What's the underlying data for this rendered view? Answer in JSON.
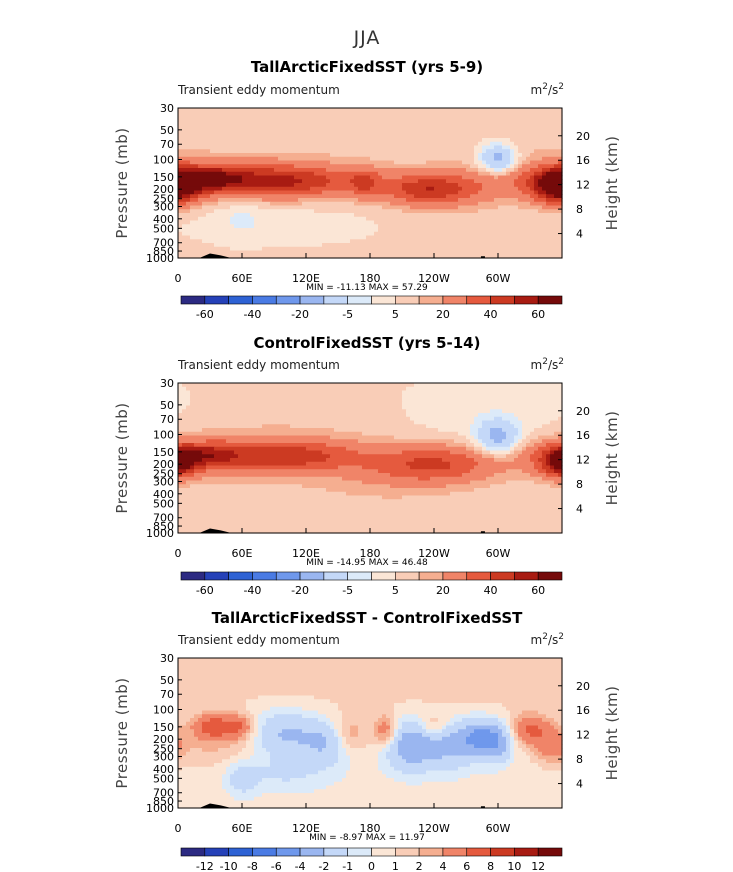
{
  "title": "JJA",
  "chart_data": [
    {
      "type": "contour",
      "panel_title": "TallArcticFixedSST (yrs 5-9)",
      "subtitle_left": "Transient eddy momentum",
      "units": "m²/s²",
      "ylabel_left": "Pressure (mb)",
      "ylabel_right": "Height (km)",
      "pressure_ticks": [
        "30",
        "50",
        "70",
        "100",
        "150",
        "200",
        "250",
        "300",
        "400",
        "500",
        "700",
        "850",
        "1000"
      ],
      "pressure_values": [
        30,
        50,
        70,
        100,
        150,
        200,
        250,
        300,
        400,
        500,
        700,
        850,
        1000
      ],
      "height_ticks": [
        "20",
        "16",
        "12",
        "8",
        "4"
      ],
      "height_values": [
        20,
        16,
        12,
        8,
        4
      ],
      "x_ticks": [
        "0",
        "60E",
        "120E",
        "180",
        "120W",
        "60W"
      ],
      "x_values": [
        0,
        60,
        120,
        180,
        240,
        300
      ],
      "xlim": [
        0,
        360
      ],
      "ylim_mb": [
        1000,
        30
      ],
      "stats": "MIN = -11.13   MAX =  57.29",
      "colorbar_labels": [
        "-60",
        "-40",
        "-20",
        "-5",
        "5",
        "20",
        "40",
        "60"
      ],
      "levels": [
        -70,
        -60,
        -50,
        -40,
        -30,
        -20,
        -10,
        -5,
        0,
        5,
        10,
        20,
        30,
        40,
        50,
        60,
        70
      ],
      "blobs": [
        {
          "lon": 180,
          "p": 400,
          "slon": 300,
          "sp": 3.5,
          "v": 1
        },
        {
          "lon": 330,
          "p": 60,
          "slon": 40,
          "sp": 0.5,
          "v": 3
        },
        {
          "lon": 100,
          "p": 120,
          "slon": 80,
          "sp": 0.5,
          "v": 3
        },
        {
          "lon": 100,
          "p": 420,
          "slon": 70,
          "sp": 0.4,
          "v": -3
        },
        {
          "lon": 60,
          "p": 400,
          "slon": 15,
          "sp": 0.3,
          "v": -5
        },
        {
          "lon": 40,
          "p": 160,
          "slon": 70,
          "sp": 0.28,
          "v": 28
        },
        {
          "lon": 30,
          "p": 155,
          "slon": 20,
          "sp": 0.18,
          "v": 27
        },
        {
          "lon": 110,
          "p": 170,
          "slon": 45,
          "sp": 0.25,
          "v": 22
        },
        {
          "lon": 175,
          "p": 170,
          "slon": 10,
          "sp": 0.22,
          "v": 18
        },
        {
          "lon": 235,
          "p": 200,
          "slon": 30,
          "sp": 0.25,
          "v": 32
        },
        {
          "lon": 260,
          "p": 210,
          "slon": 50,
          "sp": 0.4,
          "v": 6
        },
        {
          "lon": 355,
          "p": 190,
          "slon": 18,
          "sp": 0.28,
          "v": 38
        },
        {
          "lon": 300,
          "p": 100,
          "slon": 12,
          "sp": 0.25,
          "v": -28
        },
        {
          "lon": 0,
          "p": 180,
          "slon": 12,
          "sp": 0.25,
          "v": 25
        }
      ]
    },
    {
      "type": "contour",
      "panel_title": "ControlFixedSST (yrs 5-14)",
      "subtitle_left": "Transient eddy momentum",
      "units": "m²/s²",
      "ylabel_left": "Pressure (mb)",
      "ylabel_right": "Height (km)",
      "pressure_ticks": [
        "30",
        "50",
        "70",
        "100",
        "150",
        "200",
        "250",
        "300",
        "400",
        "500",
        "700",
        "850",
        "1000"
      ],
      "pressure_values": [
        30,
        50,
        70,
        100,
        150,
        200,
        250,
        300,
        400,
        500,
        700,
        850,
        1000
      ],
      "height_ticks": [
        "20",
        "16",
        "12",
        "8",
        "4"
      ],
      "height_values": [
        20,
        16,
        12,
        8,
        4
      ],
      "x_ticks": [
        "0",
        "60E",
        "120E",
        "180",
        "120W",
        "60W"
      ],
      "x_values": [
        0,
        60,
        120,
        180,
        240,
        300
      ],
      "xlim": [
        0,
        360
      ],
      "ylim_mb": [
        1000,
        30
      ],
      "stats": "MIN = -14.95   MAX =  46.48",
      "colorbar_labels": [
        "-60",
        "-40",
        "-20",
        "-5",
        "5",
        "20",
        "40",
        "60"
      ],
      "levels": [
        -70,
        -60,
        -50,
        -40,
        -30,
        -20,
        -10,
        -5,
        0,
        5,
        10,
        20,
        30,
        40,
        50,
        60,
        70
      ],
      "blobs": [
        {
          "lon": 180,
          "p": 400,
          "slon": 300,
          "sp": 3.5,
          "v": 1
        },
        {
          "lon": 290,
          "p": 70,
          "slon": 60,
          "sp": 0.6,
          "v": -4
        },
        {
          "lon": 100,
          "p": 100,
          "slon": 90,
          "sp": 0.5,
          "v": 3
        },
        {
          "lon": 150,
          "p": 500,
          "slon": 120,
          "sp": 0.5,
          "v": 2
        },
        {
          "lon": 40,
          "p": 165,
          "slon": 60,
          "sp": 0.3,
          "v": 24
        },
        {
          "lon": 30,
          "p": 160,
          "slon": 18,
          "sp": 0.18,
          "v": 20
        },
        {
          "lon": 115,
          "p": 165,
          "slon": 40,
          "sp": 0.25,
          "v": 22
        },
        {
          "lon": 240,
          "p": 200,
          "slon": 40,
          "sp": 0.3,
          "v": 28
        },
        {
          "lon": 190,
          "p": 230,
          "slon": 50,
          "sp": 0.4,
          "v": 6
        },
        {
          "lon": 300,
          "p": 110,
          "slon": 14,
          "sp": 0.3,
          "v": -26
        },
        {
          "lon": 358,
          "p": 190,
          "slon": 15,
          "sp": 0.25,
          "v": 30
        },
        {
          "lon": 2,
          "p": 190,
          "slon": 10,
          "sp": 0.22,
          "v": 22
        }
      ]
    },
    {
      "type": "contour",
      "panel_title": "TallArcticFixedSST - ControlFixedSST",
      "subtitle_left": "Transient eddy momentum",
      "units": "m²/s²",
      "ylabel_left": "Pressure (mb)",
      "ylabel_right": "Height (km)",
      "pressure_ticks": [
        "30",
        "50",
        "70",
        "100",
        "150",
        "200",
        "250",
        "300",
        "400",
        "500",
        "700",
        "850",
        "1000"
      ],
      "pressure_values": [
        30,
        50,
        70,
        100,
        150,
        200,
        250,
        300,
        400,
        500,
        700,
        850,
        1000
      ],
      "height_ticks": [
        "20",
        "16",
        "12",
        "8",
        "4"
      ],
      "height_values": [
        20,
        16,
        12,
        8,
        4
      ],
      "x_ticks": [
        "0",
        "60E",
        "120E",
        "180",
        "120W",
        "60W"
      ],
      "x_values": [
        0,
        60,
        120,
        180,
        240,
        300
      ],
      "xlim": [
        0,
        360
      ],
      "ylim_mb": [
        1000,
        30
      ],
      "stats": "MIN =  -8.97   MAX =  11.97",
      "colorbar_labels": [
        "-12",
        "-10",
        "-8",
        "-6",
        "-4",
        "-2",
        "-1",
        "0",
        "1",
        "2",
        "4",
        "6",
        "8",
        "10",
        "12"
      ],
      "levels": [
        -14,
        -12,
        -10,
        -8,
        -6,
        -4,
        -2,
        -1,
        0,
        1,
        2,
        4,
        6,
        8,
        10,
        12,
        14
      ],
      "blobs": [
        {
          "lon": 180,
          "p": 300,
          "slon": 400,
          "sp": 3,
          "v": -0.6
        },
        {
          "lon": 180,
          "p": 60,
          "slon": 400,
          "sp": 0.7,
          "v": 0.8
        },
        {
          "lon": 30,
          "p": 150,
          "slon": 12,
          "sp": 0.2,
          "v": 5
        },
        {
          "lon": 55,
          "p": 150,
          "slon": 12,
          "sp": 0.2,
          "v": 5
        },
        {
          "lon": 40,
          "p": 250,
          "slon": 40,
          "sp": 0.3,
          "v": 1.5
        },
        {
          "lon": 100,
          "p": 180,
          "slon": 25,
          "sp": 0.4,
          "v": -4
        },
        {
          "lon": 140,
          "p": 220,
          "slon": 15,
          "sp": 0.35,
          "v": -3
        },
        {
          "lon": 160,
          "p": 180,
          "slon": 12,
          "sp": 0.3,
          "v": 2.5
        },
        {
          "lon": 195,
          "p": 165,
          "slon": 8,
          "sp": 0.25,
          "v": 4
        },
        {
          "lon": 215,
          "p": 230,
          "slon": 15,
          "sp": 0.4,
          "v": -4.5
        },
        {
          "lon": 240,
          "p": 150,
          "slon": 10,
          "sp": 0.2,
          "v": 2.5
        },
        {
          "lon": 250,
          "p": 230,
          "slon": 20,
          "sp": 0.4,
          "v": -4
        },
        {
          "lon": 285,
          "p": 190,
          "slon": 15,
          "sp": 0.3,
          "v": -5.5
        },
        {
          "lon": 300,
          "p": 230,
          "slon": 10,
          "sp": 0.3,
          "v": -3
        },
        {
          "lon": 330,
          "p": 160,
          "slon": 12,
          "sp": 0.25,
          "v": 4.5
        },
        {
          "lon": 350,
          "p": 230,
          "slon": 10,
          "sp": 0.3,
          "v": 3
        },
        {
          "lon": 100,
          "p": 450,
          "slon": 30,
          "sp": 0.3,
          "v": -1.5
        },
        {
          "lon": 60,
          "p": 500,
          "slon": 10,
          "sp": 0.3,
          "v": -2
        }
      ]
    }
  ],
  "colors": {
    "map14": [
      "#2c2a82",
      "#2541b8",
      "#2e62d4",
      "#4a7be4",
      "#6f98ec",
      "#9ab6f0",
      "#c4d8f8",
      "#dceaf9",
      "#fbe6d6",
      "#f9cdb7",
      "#f5ae90",
      "#f08468",
      "#e55a3e",
      "#cc3a22",
      "#a81b12",
      "#750a0a"
    ],
    "map16": [
      "#2c2a82",
      "#2541b8",
      "#2e62d4",
      "#4a7be4",
      "#6f98ec",
      "#9ab6f0",
      "#c4d8f8",
      "#dceaf9",
      "#fbe6d6",
      "#f9cdb7",
      "#f5ae90",
      "#f08468",
      "#e55a3e",
      "#cc3a22",
      "#a81b12",
      "#750a0a"
    ],
    "topography": "#000000"
  }
}
